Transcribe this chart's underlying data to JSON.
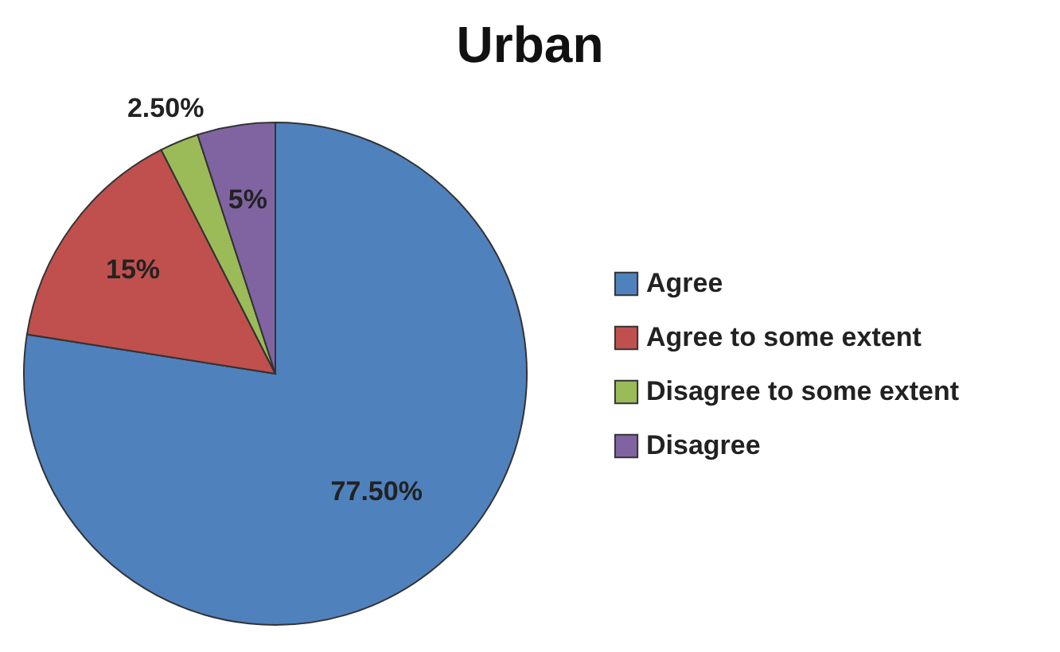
{
  "chart_data": {
    "type": "pie",
    "title": "Urban",
    "categories": [
      "Agree",
      "Agree to some extent",
      "Disagree to some extent",
      "Disagree"
    ],
    "values": [
      77.5,
      15,
      2.5,
      5
    ],
    "colors": [
      "#4f81bd",
      "#c0504d",
      "#9bbb59",
      "#8064a2"
    ],
    "value_labels": [
      "77.50%",
      "15%",
      "2.50%",
      "5%"
    ],
    "legend": "right"
  }
}
